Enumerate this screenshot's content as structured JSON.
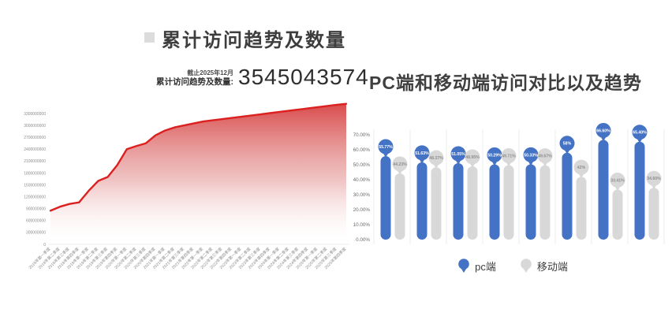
{
  "left": {
    "bullet_color": "#dcdcdc",
    "title": "累计访问趋势及数量",
    "stat": {
      "caption_top": "截止2025年12月",
      "caption_bottom": "累计访问趋势及数量:",
      "value": "3545043574"
    }
  },
  "right": {
    "title": "PC端和移动端访问对比以及趋势",
    "legend": [
      {
        "label": "pc端",
        "color": "#4472c4"
      },
      {
        "label": "移动端",
        "color": "#d8d8d8"
      }
    ]
  },
  "chart_data": [
    {
      "type": "area",
      "title": "累计访问趋势及数量",
      "line_color": "#dc2020",
      "grid": false,
      "legend_position": "none",
      "ylim": [
        0,
        3300000000
      ],
      "yticks": [
        "3300000000",
        "3000000000",
        "2700000000",
        "2400000000",
        "2100000000",
        "1800000000",
        "1500000000",
        "1200000000",
        "900000000",
        "600000000",
        "300000000",
        "0"
      ],
      "x": [
        "2018年第一季度",
        "2018年第二季度",
        "2018年第三季度",
        "2018年第四季度",
        "2019年第一季度",
        "2019年第二季度",
        "2019年第三季度",
        "2019年第四季度",
        "2020年第一季度",
        "2020年第二季度",
        "2020年第三季度",
        "2020年第四季度",
        "2021年第一季度",
        "2021年第二季度",
        "2021年第三季度",
        "2021年第四季度",
        "2022年第一季度",
        "2022年第二季度",
        "2022年第三季度",
        "2022年第四季度",
        "2023年第一季度",
        "2023年第二季度",
        "2023年第三季度",
        "2023年第四季度",
        "2024年第一季度",
        "2024年第二季度",
        "2024年第三季度",
        "2024年第四季度",
        "2025年第一季度",
        "2025年第二季度",
        "2025年第三季度",
        "2025年第四季度"
      ],
      "values": [
        850000000,
        950000000,
        1020000000,
        1060000000,
        1350000000,
        1600000000,
        1700000000,
        2000000000,
        2400000000,
        2480000000,
        2550000000,
        2750000000,
        2870000000,
        2950000000,
        3000000000,
        3050000000,
        3100000000,
        3130000000,
        3160000000,
        3190000000,
        3220000000,
        3250000000,
        3280000000,
        3310000000,
        3340000000,
        3370000000,
        3400000000,
        3430000000,
        3460000000,
        3490000000,
        3520000000,
        3545043574
      ]
    },
    {
      "type": "bar",
      "title": "PC端和移动端访问对比以及趋势",
      "grid": "vertical-separators",
      "legend_position": "bottom",
      "ylim": [
        0,
        70
      ],
      "yticks": [
        "0.00%",
        "10.00%",
        "20.00%",
        "30.00%",
        "40.00%",
        "50.00%",
        "60.00%",
        "70.00%"
      ],
      "series": [
        {
          "name": "pc端",
          "color": "#4472c4",
          "label_text_color": "#ffffff",
          "values": [
            55.77,
            51.63,
            51.05,
            50.29,
            50.33,
            58,
            66.6,
            65.4
          ],
          "labels": [
            "55.77%",
            "51.63%",
            "51.05%",
            "50.29%",
            "50.33%",
            "58%",
            "66.60%",
            "65.40%"
          ]
        },
        {
          "name": "移动端",
          "color": "#d8d8d8",
          "label_text_color": "#8f8f8f",
          "values": [
            44.23,
            48.37,
            48.95,
            49.71,
            49.67,
            42,
            33.41,
            34.6
          ],
          "labels": [
            "44.23%",
            "48.37%",
            "48.95%",
            "49.71%",
            "49.67%",
            "42%",
            "33.41%",
            "34.60%"
          ]
        }
      ]
    }
  ]
}
